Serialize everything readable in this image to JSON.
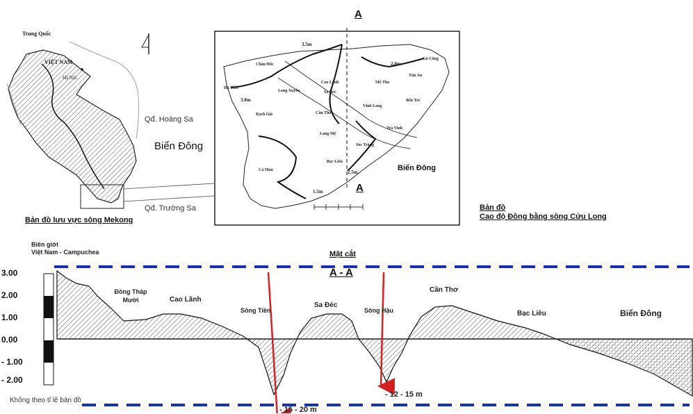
{
  "mekong_map": {
    "trung_quoc": "Trung Quốc",
    "viet_nam": "VIỆT NAM",
    "ha_noi": "Hà Nội",
    "hoang_sa": "Qđ. Hoàng Sa",
    "bien_dong": "Biển Đông",
    "truong_sa": "Qđ. Trường Sa",
    "caption": "Bản đồ lưu vực sông Mekong"
  },
  "delta_map": {
    "section_top": "A",
    "section_bottom": "A",
    "contours": [
      "3.5m",
      "3.0m",
      "2.0m",
      "2.5m",
      "1.5m"
    ],
    "places": [
      "Châu Đốc",
      "Hà Tiên",
      "Long Xuyên",
      "Cao Lãnh",
      "Sa Đéc",
      "Mỹ Tho",
      "Gò Công",
      "Tân An",
      "Bến Tre",
      "Vĩnh Long",
      "Cần Thơ",
      "Rạch Giá",
      "Long Mỹ",
      "Trà Vinh",
      "Sóc Trăng",
      "Bạc Liêu",
      "Cà Mau"
    ],
    "sea": "Biển Đông",
    "caption_line1": "Bản đồ",
    "caption_line2": "Cao độ Đồng bằng sông Cửu Long"
  },
  "profile": {
    "border_line1": "Biên giới",
    "border_line2": "Việt Nam - Campuchea",
    "title_line1": "Mặt cắt",
    "title_line2": "A - A",
    "scale_ticks": [
      "3.00",
      "2.00",
      "1.00",
      "0.00",
      "- 1.00",
      "- 2.00"
    ],
    "places": [
      "Đồng Tháp Mười",
      "Cao Lãnh",
      "Sông Tiền",
      "Sa Đéc",
      "Sông Hậu",
      "Cần Thơ",
      "Bạc Liêu",
      "Biển Đông"
    ],
    "depth_tien": "- 15 - 20 m",
    "depth_hau": "- 12 - 15 m",
    "note": "Không theo tỉ lệ bản đồ"
  },
  "colors": {
    "dashed_line": "#1a2fb8",
    "arrow": "#d42020",
    "hatch": "#555555"
  }
}
